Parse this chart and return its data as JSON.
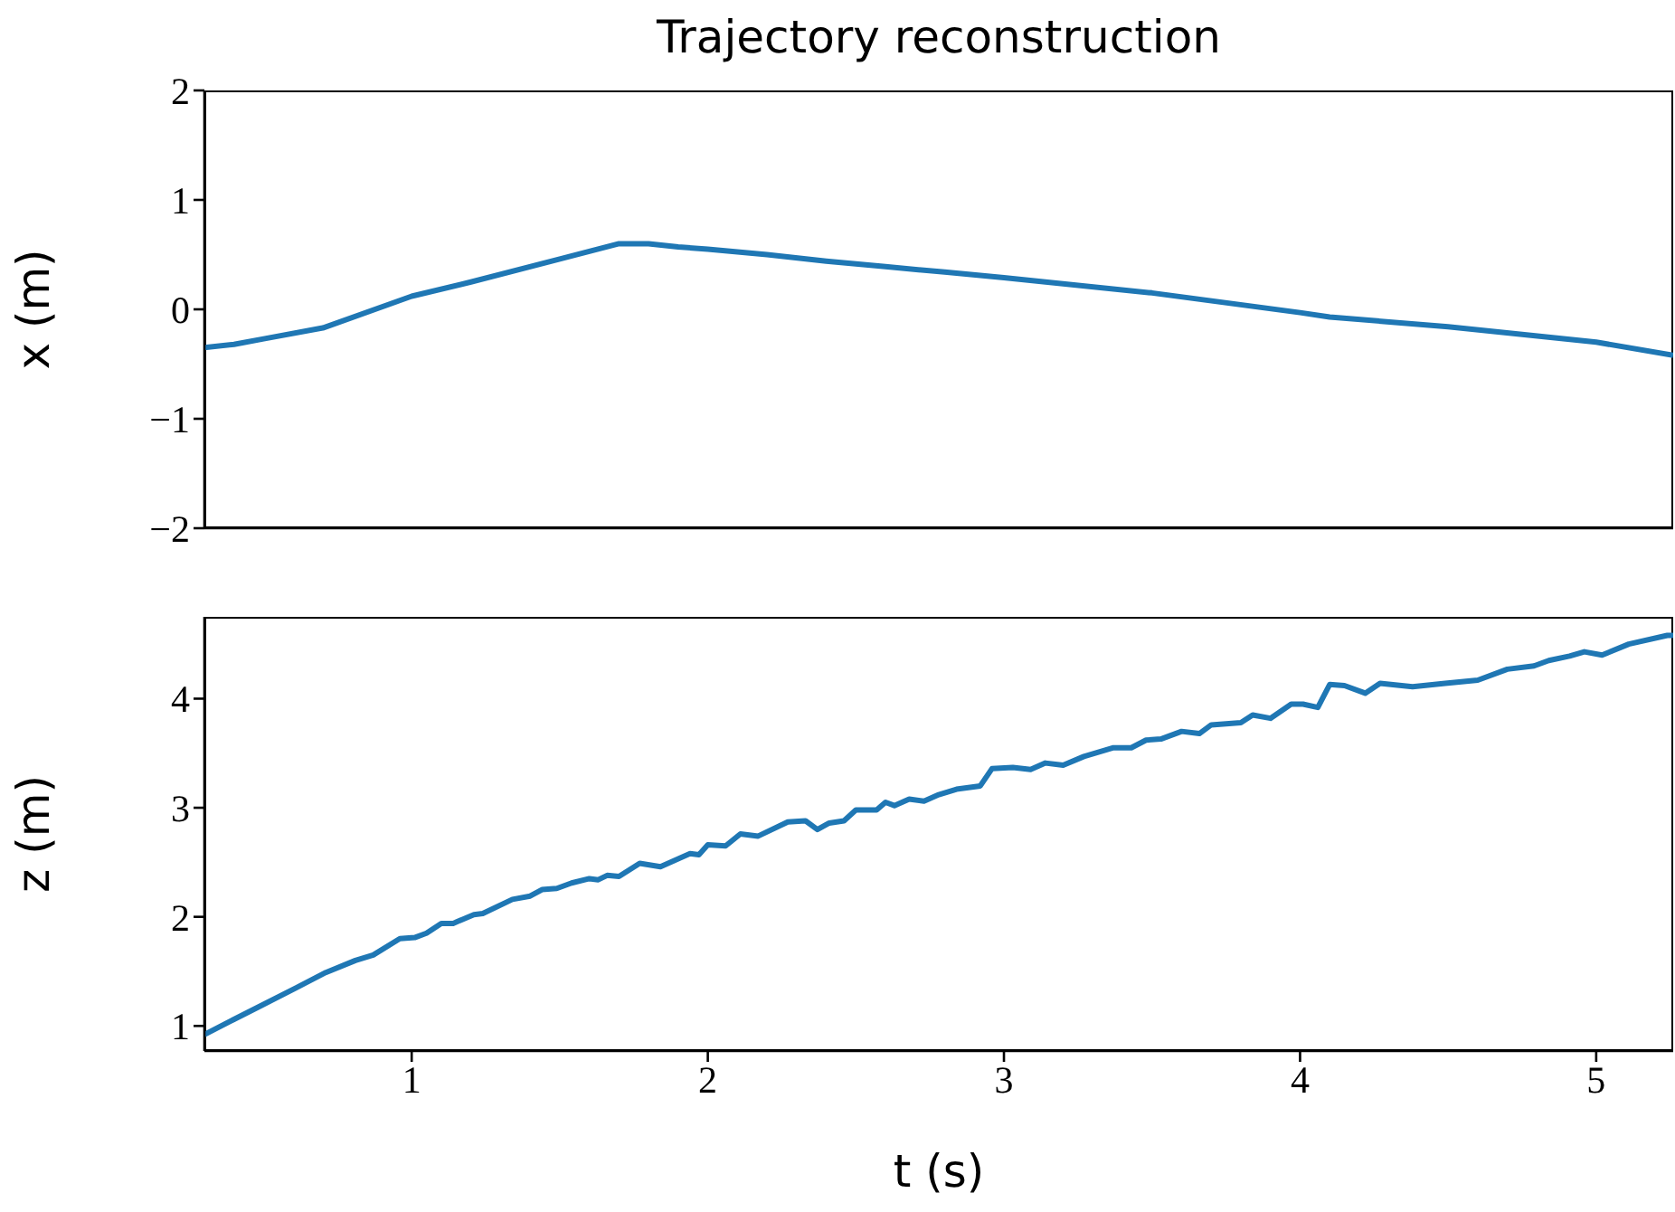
{
  "chart_data": [
    {
      "type": "line",
      "title": "Trajectory reconstruction",
      "ylabel": "x (m)",
      "tick_labels": "y",
      "xlim": [
        0.3,
        5.26
      ],
      "xticks": [
        1,
        2,
        3,
        4,
        5
      ],
      "ylim": [
        -2,
        2
      ],
      "yticks": [
        {
          "value": -2,
          "label": "−2"
        },
        {
          "value": -1,
          "label": "−1"
        },
        0,
        1,
        2
      ],
      "series": [
        {
          "color": "#1f77b4",
          "x": [
            0.3,
            0.4,
            0.5,
            0.7,
            1.0,
            1.2,
            1.5,
            1.6,
            1.7,
            1.8,
            1.9,
            2.0,
            2.2,
            2.4,
            2.6,
            2.8,
            3.0,
            3.5,
            4.0,
            4.1,
            4.5,
            5.0,
            5.26
          ],
          "values": [
            -0.35,
            -0.32,
            -0.27,
            -0.17,
            0.12,
            0.25,
            0.46,
            0.53,
            0.6,
            0.6,
            0.57,
            0.55,
            0.5,
            0.44,
            0.39,
            0.34,
            0.29,
            0.15,
            -0.03,
            -0.07,
            -0.16,
            -0.3,
            -0.42
          ]
        }
      ]
    },
    {
      "type": "line",
      "ylabel": "z (m)",
      "xlabel": "t (s)",
      "xlim": [
        0.3,
        5.26
      ],
      "xticks": [
        1,
        2,
        3,
        4,
        5
      ],
      "ylim": [
        0.77,
        4.75
      ],
      "yticks": [
        1,
        2,
        3,
        4
      ],
      "series": [
        {
          "color": "#1f77b4",
          "x": [
            0.3,
            0.4,
            0.48,
            0.61,
            0.71,
            0.81,
            0.87,
            0.96,
            1.01,
            1.05,
            1.1,
            1.14,
            1.21,
            1.24,
            1.34,
            1.4,
            1.44,
            1.49,
            1.54,
            1.6,
            1.63,
            1.66,
            1.7,
            1.77,
            1.84,
            1.94,
            1.97,
            2.0,
            2.06,
            2.11,
            2.17,
            2.27,
            2.33,
            2.37,
            2.41,
            2.46,
            2.5,
            2.57,
            2.6,
            2.63,
            2.68,
            2.73,
            2.78,
            2.84,
            2.92,
            2.96,
            3.03,
            3.09,
            3.14,
            3.2,
            3.27,
            3.37,
            3.43,
            3.48,
            3.53,
            3.6,
            3.66,
            3.7,
            3.8,
            3.84,
            3.9,
            3.97,
            4.01,
            4.06,
            4.1,
            4.15,
            4.22,
            4.27,
            4.38,
            4.49,
            4.6,
            4.7,
            4.79,
            4.84,
            4.91,
            4.96,
            5.02,
            5.11,
            5.24,
            5.26
          ],
          "values": [
            0.92,
            1.06,
            1.17,
            1.35,
            1.49,
            1.6,
            1.65,
            1.8,
            1.81,
            1.85,
            1.94,
            1.94,
            2.02,
            2.03,
            2.16,
            2.19,
            2.25,
            2.26,
            2.31,
            2.35,
            2.34,
            2.38,
            2.37,
            2.49,
            2.46,
            2.58,
            2.57,
            2.66,
            2.65,
            2.76,
            2.74,
            2.87,
            2.88,
            2.8,
            2.86,
            2.88,
            2.98,
            2.98,
            3.05,
            3.02,
            3.08,
            3.06,
            3.12,
            3.17,
            3.2,
            3.36,
            3.37,
            3.35,
            3.41,
            3.39,
            3.47,
            3.55,
            3.55,
            3.62,
            3.63,
            3.7,
            3.68,
            3.76,
            3.78,
            3.85,
            3.82,
            3.95,
            3.95,
            3.92,
            4.13,
            4.12,
            4.05,
            4.14,
            4.11,
            4.14,
            4.17,
            4.27,
            4.3,
            4.35,
            4.39,
            4.43,
            4.4,
            4.5,
            4.58,
            4.58
          ]
        }
      ]
    }
  ]
}
